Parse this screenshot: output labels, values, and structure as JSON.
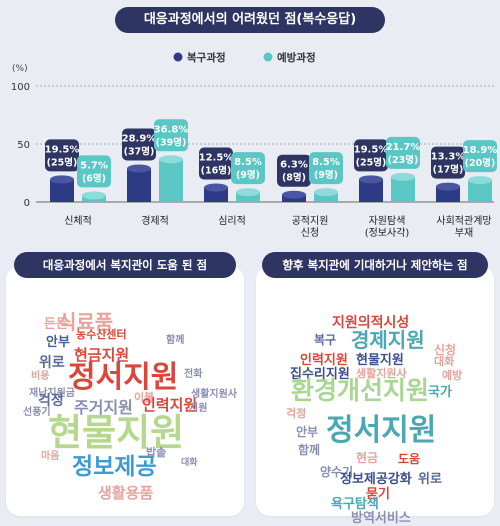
{
  "title": "대응과정에서의 어려웠던 점(복수응답)",
  "colors": {
    "recovery": "#2d3a86",
    "prevention": "#5bc7c4",
    "navy": "#2e3563"
  },
  "chart_data": {
    "type": "bar",
    "title": "대응과정에서의 어려웠던 점(복수응답)",
    "unit_label": "(%)",
    "ylim": [
      0,
      100
    ],
    "yticks": [
      "0",
      "50",
      "100"
    ],
    "categories": [
      [
        "신체적"
      ],
      [
        "경제적"
      ],
      [
        "심리적"
      ],
      [
        "공적지원",
        "신청"
      ],
      [
        "자원탐색",
        "(정보사각)"
      ],
      [
        "사회적관계망",
        "부재"
      ]
    ],
    "series": [
      {
        "name": "복구과정",
        "values": [
          19.5,
          28.9,
          12.5,
          6.3,
          19.5,
          13.3
        ],
        "labels": [
          "19.5%",
          "28.9%",
          "12.5%",
          "6.3%",
          "19.5%",
          "13.3%"
        ],
        "counts": [
          "(25명)",
          "(37명)",
          "(16명)",
          "(8명)",
          "(25명)",
          "(17명)"
        ]
      },
      {
        "name": "예방과정",
        "values": [
          5.7,
          36.8,
          8.5,
          8.5,
          21.7,
          18.9
        ],
        "labels": [
          "5.7%",
          "36.8%",
          "8.5%",
          "8.5%",
          "21.7%",
          "18.9%"
        ],
        "counts": [
          "(6명)",
          "(39명)",
          "(9명)",
          "(9명)",
          "(23명)",
          "(20명)"
        ]
      }
    ],
    "legend_position": "top-center"
  },
  "panels": [
    {
      "title": "대응과정에서 복지관이 도움 된 점",
      "words": [
        {
          "text": "식료품",
          "c": "#e7a39c"
        },
        {
          "text": "든든",
          "c": "#e7a39c"
        },
        {
          "text": "농수산센터",
          "c": "#d9473c"
        },
        {
          "text": "안부",
          "c": "#4b5f90"
        },
        {
          "text": "현금지원",
          "c": "#d9473c"
        },
        {
          "text": "함께",
          "c": "#8a8fb0"
        },
        {
          "text": "위로",
          "c": "#5a6a9a"
        },
        {
          "text": "정서지원",
          "c": "#d9473c"
        },
        {
          "text": "전화",
          "c": "#8a8fb0"
        },
        {
          "text": "비용",
          "c": "#e7a39c"
        },
        {
          "text": "재난지원금",
          "c": "#8a8fb0"
        },
        {
          "text": "걱정",
          "c": "#5a6a9a"
        },
        {
          "text": "주거지원",
          "c": "#8a8fb0"
        },
        {
          "text": "이불",
          "c": "#e7a39c"
        },
        {
          "text": "인력지원",
          "c": "#d9473c"
        },
        {
          "text": "생활지원사",
          "c": "#8a8fb0"
        },
        {
          "text": "선풍기",
          "c": "#8a8fb0"
        },
        {
          "text": "지원",
          "c": "#8a8fb0"
        },
        {
          "text": "현물지원",
          "c": "#b4d98e"
        },
        {
          "text": "마음",
          "c": "#e7a39c"
        },
        {
          "text": "밥솥",
          "c": "#8a8fb0"
        },
        {
          "text": "정보제공",
          "c": "#3e9bd1"
        },
        {
          "text": "대화",
          "c": "#8a8fb0"
        },
        {
          "text": "생활용품",
          "c": "#e7a39c"
        }
      ]
    },
    {
      "title": "향후 복지관에 기대하거나 제안하는 점",
      "words": [
        {
          "text": "지원의적시성",
          "c": "#d9473c"
        },
        {
          "text": "복구",
          "c": "#5a6a9a"
        },
        {
          "text": "경제지원",
          "c": "#4aa8b0"
        },
        {
          "text": "신청",
          "c": "#e7a39c"
        },
        {
          "text": "인력지원",
          "c": "#d9473c"
        },
        {
          "text": "현물지원",
          "c": "#3b4f8a"
        },
        {
          "text": "대화",
          "c": "#e7a39c"
        },
        {
          "text": "집수리지원",
          "c": "#3b4f8a"
        },
        {
          "text": "생활지원사",
          "c": "#e7a39c"
        },
        {
          "text": "예방",
          "c": "#e7a39c"
        },
        {
          "text": "환경개선지원",
          "c": "#a9d693"
        },
        {
          "text": "국가",
          "c": "#4aa8b0"
        },
        {
          "text": "걱정",
          "c": "#e7a39c"
        },
        {
          "text": "정서지원",
          "c": "#4aa8b0"
        },
        {
          "text": "안부",
          "c": "#8a8fb0"
        },
        {
          "text": "함께",
          "c": "#8a8fb0"
        },
        {
          "text": "현금",
          "c": "#e7a39c"
        },
        {
          "text": "도움",
          "c": "#d9473c"
        },
        {
          "text": "양수기",
          "c": "#8a8fb0"
        },
        {
          "text": "정보제공강화",
          "c": "#3b4f8a"
        },
        {
          "text": "위로",
          "c": "#5a6a9a"
        },
        {
          "text": "묻기",
          "c": "#d9473c"
        },
        {
          "text": "욕구탐색",
          "c": "#4aa8b0"
        },
        {
          "text": "방역서비스",
          "c": "#8a8fb0"
        }
      ]
    }
  ]
}
